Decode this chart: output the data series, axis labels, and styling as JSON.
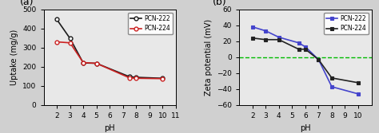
{
  "panel_a": {
    "pcn222_x": [
      2,
      3,
      4,
      5,
      7.5,
      8,
      10
    ],
    "pcn222_y": [
      447,
      348,
      220,
      218,
      148,
      145,
      140
    ],
    "pcn224_x": [
      2,
      3,
      4,
      5,
      7.5,
      8,
      10
    ],
    "pcn224_y": [
      330,
      325,
      222,
      218,
      142,
      140,
      138
    ],
    "pcn222_color": "#1a1a1a",
    "pcn224_color": "#cc2222",
    "xlabel": "pH",
    "ylabel": "Uptake (mg/g)",
    "xlim": [
      1,
      11
    ],
    "ylim": [
      0,
      500
    ],
    "yticks": [
      0,
      100,
      200,
      300,
      400,
      500
    ],
    "xticks": [
      2,
      3,
      4,
      5,
      6,
      7,
      8,
      9,
      10,
      11
    ],
    "label": "(a)"
  },
  "panel_b": {
    "pcn222_x": [
      2,
      3,
      4,
      5.5,
      6,
      7,
      8,
      10
    ],
    "pcn222_y": [
      38,
      33,
      25,
      18,
      13,
      -3,
      -37,
      -46
    ],
    "pcn224_x": [
      2,
      3,
      4,
      5.5,
      6,
      7,
      8,
      10
    ],
    "pcn224_y": [
      24,
      22,
      22,
      10,
      10,
      -3,
      -26,
      -32
    ],
    "pcn222_color": "#4444cc",
    "pcn224_color": "#222222",
    "xlabel": "pH",
    "ylabel": "Zeta potential (mV)",
    "xlim": [
      1,
      11
    ],
    "ylim": [
      -60,
      60
    ],
    "yticks": [
      -60,
      -40,
      -20,
      0,
      20,
      40,
      60
    ],
    "xticks": [
      2,
      3,
      4,
      5,
      6,
      7,
      8,
      9,
      10
    ],
    "hline_y": 0,
    "hline_color": "#00bb00",
    "label": "(b)"
  },
  "bg_color": "#e8e8e8",
  "fig_bg_color": "#d0d0d0"
}
